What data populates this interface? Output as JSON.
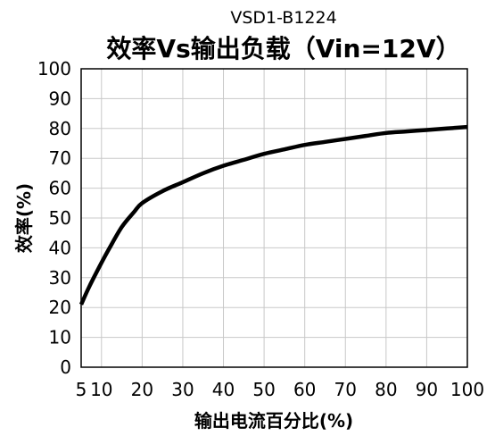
{
  "chart_data": {
    "type": "line",
    "subtitle": "VSD1-B1224",
    "title": "效率Vs输出负载（Vin=12V）",
    "xlabel": "输出电流百分比(%)",
    "ylabel": "效率(%)",
    "xlim": [
      5,
      100
    ],
    "ylim": [
      0,
      100
    ],
    "xticks": [
      5,
      10,
      20,
      30,
      40,
      50,
      60,
      70,
      80,
      90,
      100
    ],
    "yticks": [
      0,
      10,
      20,
      30,
      40,
      50,
      60,
      70,
      80,
      90,
      100
    ],
    "grid": true,
    "series": [
      {
        "color": "#000000",
        "x": [
          5,
          7,
          10,
          12,
          15,
          18,
          20,
          25,
          30,
          35,
          40,
          45,
          50,
          55,
          60,
          65,
          70,
          75,
          80,
          85,
          90,
          95,
          100
        ],
        "y": [
          21,
          27,
          35,
          40,
          47,
          52,
          55,
          59,
          62,
          65,
          67.5,
          69.5,
          71.5,
          73,
          74.5,
          75.5,
          76.5,
          77.5,
          78.5,
          79,
          79.5,
          80,
          80.5
        ]
      }
    ]
  }
}
